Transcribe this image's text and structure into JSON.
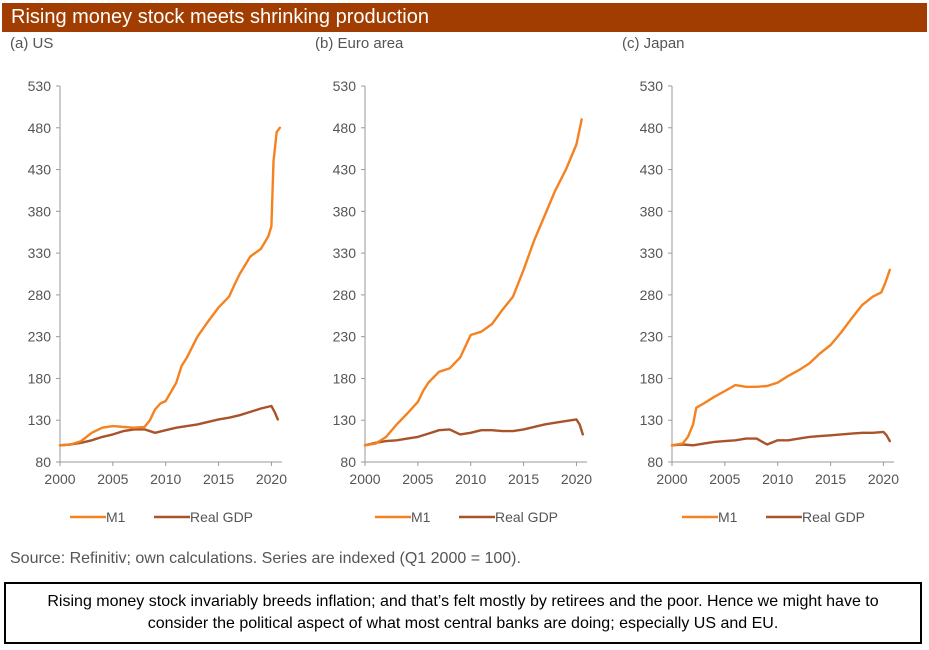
{
  "header": {
    "title": "Rising money stock meets shrinking production"
  },
  "source": "Source: Refinitiv; own calculations. Series are indexed (Q1 2000 = 100).",
  "note": "Rising money stock invariably breeds inflation; and that’s felt mostly by retirees and the poor. Hence we might have to consider the political aspect of what most central banks are doing; especially US and EU.",
  "colors": {
    "title_bg": "#a13d00",
    "m1": "#f58220",
    "gdp": "#a9532b",
    "axis": "#999999"
  },
  "chart_data": [
    {
      "type": "line",
      "title": "(a) US",
      "ylim": [
        80,
        530
      ],
      "yticks": [
        80,
        130,
        180,
        230,
        280,
        330,
        380,
        430,
        480,
        530
      ],
      "xlim": [
        2000,
        2021
      ],
      "xticks": [
        2000,
        2005,
        2010,
        2015,
        2020
      ],
      "grid": false,
      "legend_position": "bottom",
      "series": [
        {
          "name": "M1",
          "color": "#f58220",
          "x": [
            2000,
            2001,
            2002,
            2003,
            2004,
            2005,
            2006,
            2007,
            2008,
            2008.5,
            2009,
            2009.5,
            2010,
            2011,
            2011.5,
            2012,
            2013,
            2014,
            2015,
            2016,
            2016.5,
            2017,
            2018,
            2019,
            2019.7,
            2020.0,
            2020.2,
            2020.5,
            2020.8
          ],
          "y": [
            100,
            101,
            105,
            115,
            121,
            123,
            122,
            121,
            122,
            130,
            143,
            150,
            153,
            175,
            195,
            205,
            230,
            248,
            265,
            278,
            292,
            305,
            326,
            335,
            350,
            362,
            440,
            475,
            480
          ]
        },
        {
          "name": "Real GDP",
          "color": "#a9532b",
          "x": [
            2000,
            2001,
            2002,
            2003,
            2004,
            2005,
            2006,
            2007,
            2008,
            2009,
            2010,
            2011,
            2012,
            2013,
            2014,
            2015,
            2016,
            2017,
            2018,
            2019,
            2020,
            2020.3,
            2020.6
          ],
          "y": [
            100,
            101,
            103,
            106,
            110,
            113,
            117,
            119,
            119,
            115,
            118,
            121,
            123,
            125,
            128,
            131,
            133,
            136,
            140,
            144,
            147,
            140,
            131
          ]
        }
      ]
    },
    {
      "type": "line",
      "title": "(b) Euro area",
      "ylim": [
        80,
        530
      ],
      "yticks": [
        80,
        130,
        180,
        230,
        280,
        330,
        380,
        430,
        480,
        530
      ],
      "xlim": [
        2000,
        2021
      ],
      "xticks": [
        2000,
        2005,
        2010,
        2015,
        2020
      ],
      "grid": false,
      "legend_position": "bottom",
      "series": [
        {
          "name": "M1",
          "color": "#f58220",
          "x": [
            2000,
            2001,
            2002,
            2003,
            2004,
            2005,
            2005.5,
            2006,
            2007,
            2008,
            2009,
            2010,
            2011,
            2012,
            2013,
            2014,
            2015,
            2016,
            2017,
            2018,
            2019,
            2020,
            2020.5
          ],
          "y": [
            100,
            102,
            110,
            125,
            138,
            152,
            165,
            175,
            188,
            192,
            205,
            232,
            236,
            245,
            262,
            278,
            310,
            345,
            375,
            405,
            430,
            460,
            490
          ]
        },
        {
          "name": "Real GDP",
          "color": "#a9532b",
          "x": [
            2000,
            2001,
            2002,
            2003,
            2004,
            2005,
            2006,
            2007,
            2008,
            2009,
            2010,
            2011,
            2012,
            2013,
            2014,
            2015,
            2016,
            2017,
            2018,
            2019,
            2020,
            2020.3,
            2020.6
          ],
          "y": [
            100,
            103,
            105,
            106,
            108,
            110,
            114,
            118,
            119,
            113,
            115,
            118,
            118,
            117,
            117,
            119,
            122,
            125,
            127,
            129,
            131,
            125,
            113
          ]
        }
      ]
    },
    {
      "type": "line",
      "title": "(c) Japan",
      "ylim": [
        80,
        530
      ],
      "yticks": [
        80,
        130,
        180,
        230,
        280,
        330,
        380,
        430,
        480,
        530
      ],
      "xlim": [
        2000,
        2021
      ],
      "xticks": [
        2000,
        2005,
        2010,
        2015,
        2020
      ],
      "grid": false,
      "legend_position": "bottom",
      "series": [
        {
          "name": "M1",
          "color": "#f58220",
          "x": [
            2000,
            2001,
            2001.5,
            2002,
            2002.3,
            2003,
            2004,
            2005,
            2006,
            2007,
            2008,
            2009,
            2010,
            2011,
            2012,
            2013,
            2014,
            2015,
            2016,
            2017,
            2018,
            2019,
            2019.8,
            2020.2,
            2020.6
          ],
          "y": [
            100,
            102,
            110,
            125,
            145,
            150,
            158,
            165,
            172,
            170,
            170,
            171,
            175,
            183,
            190,
            198,
            210,
            220,
            235,
            252,
            268,
            278,
            283,
            295,
            310
          ]
        },
        {
          "name": "Real GDP",
          "color": "#a9532b",
          "x": [
            2000,
            2001,
            2002,
            2003,
            2004,
            2005,
            2006,
            2007,
            2008,
            2009,
            2010,
            2011,
            2012,
            2013,
            2014,
            2015,
            2016,
            2017,
            2018,
            2019,
            2020,
            2020.3,
            2020.6
          ],
          "y": [
            100,
            101,
            100,
            102,
            104,
            105,
            106,
            108,
            108,
            101,
            106,
            106,
            108,
            110,
            111,
            112,
            113,
            114,
            115,
            115,
            116,
            112,
            105
          ]
        }
      ]
    }
  ]
}
